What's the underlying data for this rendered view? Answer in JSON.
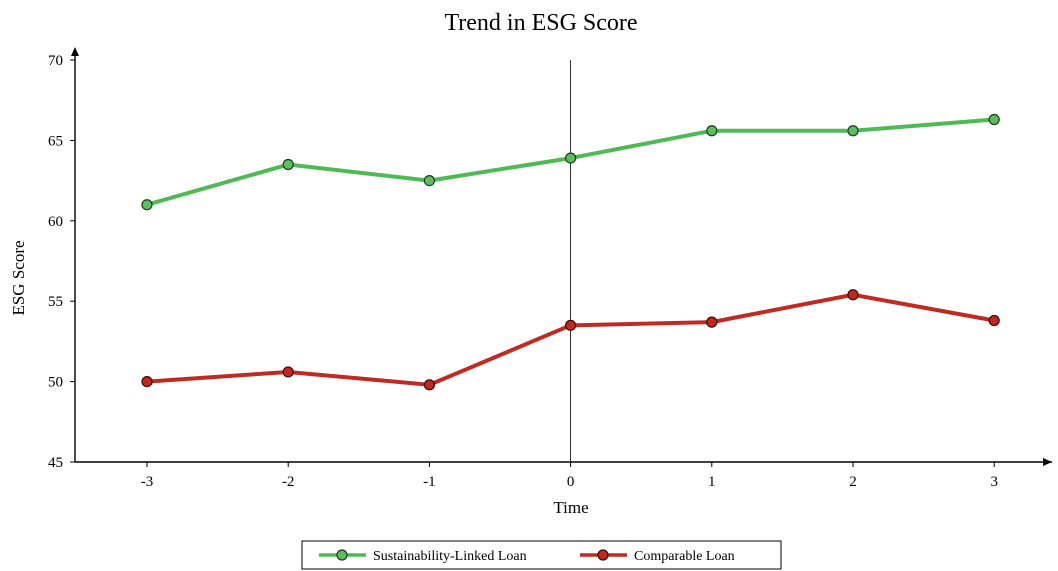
{
  "chart_data": {
    "type": "line",
    "title": "Trend in ESG Score",
    "xlabel": "Time",
    "ylabel": "ESG Score",
    "x": [
      -3,
      -2,
      -1,
      0,
      1,
      2,
      3
    ],
    "x_tick_labels": [
      "-3",
      "-2",
      "-1",
      "0",
      "1",
      "2",
      "3"
    ],
    "ylim": [
      45,
      70
    ],
    "y_ticks": [
      45,
      50,
      55,
      60,
      65,
      70
    ],
    "y_tick_labels": [
      "45",
      "50",
      "55",
      "60",
      "65",
      "70"
    ],
    "grid": false,
    "reference_line_x": 0,
    "legend_position": "bottom",
    "series": [
      {
        "name": "Sustainability-Linked Loan",
        "color": "#4fb955",
        "marker_color": "#5ebd5e",
        "values": [
          61.0,
          63.5,
          62.5,
          63.9,
          65.6,
          65.6,
          66.3
        ]
      },
      {
        "name": "Comparable Loan",
        "color": "#bf2b22",
        "marker_color": "#c0271f",
        "values": [
          50.0,
          50.6,
          49.8,
          53.5,
          53.7,
          55.4,
          53.8
        ]
      }
    ]
  }
}
